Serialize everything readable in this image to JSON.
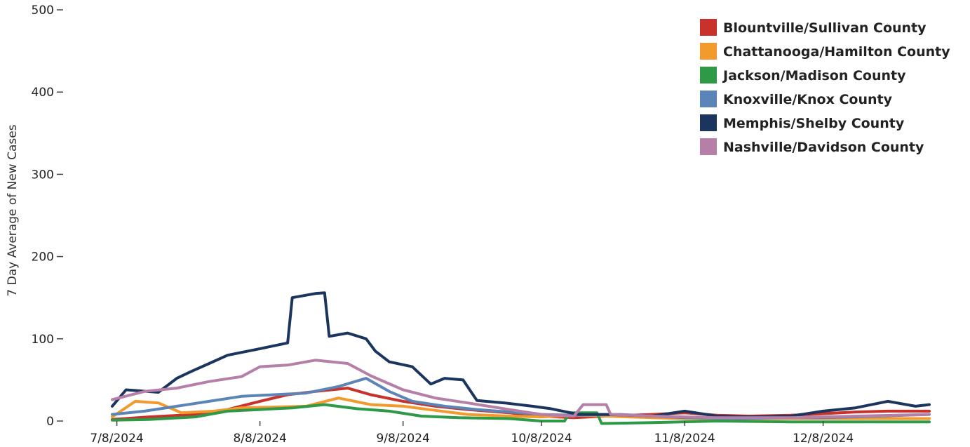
{
  "chart_data": {
    "type": "line",
    "title": "",
    "xlabel": "",
    "ylabel": "7 Day Average of New Cases",
    "ylim": [
      0,
      500
    ],
    "yticks": [
      0,
      100,
      200,
      300,
      400,
      500
    ],
    "xticks": [
      "7/8/2024",
      "8/8/2024",
      "9/8/2024",
      "10/8/2024",
      "11/8/2024",
      "12/8/2024"
    ],
    "grid": false,
    "legend_position": "top-right",
    "series": [
      {
        "name": "Blountville/Sullivan County",
        "color": "#c8322a",
        "points": [
          [
            "7/7/2024",
            2
          ],
          [
            "7/15/2024",
            5
          ],
          [
            "7/25/2024",
            8
          ],
          [
            "8/1/2024",
            14
          ],
          [
            "8/8/2024",
            24
          ],
          [
            "8/14/2024",
            32
          ],
          [
            "8/20/2024",
            36
          ],
          [
            "8/27/2024",
            40
          ],
          [
            "9/1/2024",
            32
          ],
          [
            "9/8/2024",
            24
          ],
          [
            "9/15/2024",
            18
          ],
          [
            "9/22/2024",
            14
          ],
          [
            "10/1/2024",
            10
          ],
          [
            "10/8/2024",
            6
          ],
          [
            "10/15/2024",
            4
          ],
          [
            "10/22/2024",
            6
          ],
          [
            "11/1/2024",
            8
          ],
          [
            "11/8/2024",
            10
          ],
          [
            "11/15/2024",
            7
          ],
          [
            "11/22/2024",
            6
          ],
          [
            "12/1/2024",
            7
          ],
          [
            "12/8/2024",
            9
          ],
          [
            "12/15/2024",
            11
          ],
          [
            "12/22/2024",
            12
          ],
          [
            "12/31/2024",
            12
          ]
        ]
      },
      {
        "name": "Chattanooga/Hamilton County",
        "color": "#f39a2e",
        "points": [
          [
            "7/7/2024",
            5
          ],
          [
            "7/12/2024",
            24
          ],
          [
            "7/17/2024",
            22
          ],
          [
            "7/22/2024",
            10
          ],
          [
            "7/29/2024",
            12
          ],
          [
            "8/4/2024",
            16
          ],
          [
            "8/11/2024",
            17
          ],
          [
            "8/18/2024",
            18
          ],
          [
            "8/25/2024",
            28
          ],
          [
            "9/1/2024",
            20
          ],
          [
            "9/8/2024",
            18
          ],
          [
            "9/15/2024",
            13
          ],
          [
            "9/22/2024",
            8
          ],
          [
            "10/1/2024",
            6
          ],
          [
            "10/8/2024",
            5
          ],
          [
            "10/15/2024",
            7
          ],
          [
            "10/22/2024",
            6
          ],
          [
            "11/1/2024",
            4
          ],
          [
            "11/8/2024",
            3
          ],
          [
            "11/22/2024",
            3
          ],
          [
            "12/8/2024",
            3
          ],
          [
            "12/22/2024",
            3
          ],
          [
            "12/31/2024",
            3
          ]
        ]
      },
      {
        "name": "Jackson/Madison County",
        "color": "#2e9a47",
        "points": [
          [
            "7/7/2024",
            1
          ],
          [
            "7/15/2024",
            2
          ],
          [
            "7/25/2024",
            5
          ],
          [
            "8/1/2024",
            12
          ],
          [
            "8/8/2024",
            14
          ],
          [
            "8/15/2024",
            16
          ],
          [
            "8/22/2024",
            20
          ],
          [
            "8/29/2024",
            15
          ],
          [
            "9/5/2024",
            12
          ],
          [
            "9/12/2024",
            6
          ],
          [
            "9/20/2024",
            4
          ],
          [
            "10/1/2024",
            3
          ],
          [
            "10/8/2024",
            0
          ],
          [
            "10/13/2024",
            0
          ],
          [
            "10/14/2024",
            10
          ],
          [
            "10/20/2024",
            10
          ],
          [
            "10/21/2024",
            -3
          ],
          [
            "11/1/2024",
            -2
          ],
          [
            "11/15/2024",
            0
          ],
          [
            "12/1/2024",
            -1
          ],
          [
            "12/15/2024",
            -1
          ],
          [
            "12/31/2024",
            -1
          ]
        ]
      },
      {
        "name": "Knoxville/Knox County",
        "color": "#5b84b8",
        "points": [
          [
            "7/7/2024",
            8
          ],
          [
            "7/14/2024",
            12
          ],
          [
            "7/21/2024",
            18
          ],
          [
            "7/28/2024",
            24
          ],
          [
            "8/4/2024",
            30
          ],
          [
            "8/11/2024",
            32
          ],
          [
            "8/18/2024",
            34
          ],
          [
            "8/25/2024",
            42
          ],
          [
            "8/31/2024",
            52
          ],
          [
            "9/5/2024",
            36
          ],
          [
            "9/10/2024",
            24
          ],
          [
            "9/17/2024",
            18
          ],
          [
            "9/24/2024",
            14
          ],
          [
            "10/1/2024",
            11
          ],
          [
            "10/8/2024",
            8
          ],
          [
            "10/15/2024",
            7
          ],
          [
            "10/25/2024",
            8
          ],
          [
            "11/1/2024",
            6
          ],
          [
            "11/8/2024",
            4
          ],
          [
            "11/20/2024",
            3
          ],
          [
            "12/1/2024",
            4
          ],
          [
            "12/8/2024",
            4
          ],
          [
            "12/20/2024",
            6
          ],
          [
            "12/31/2024",
            8
          ]
        ]
      },
      {
        "name": "Memphis/Shelby County",
        "color": "#1c355e",
        "points": [
          [
            "7/7/2024",
            18
          ],
          [
            "7/10/2024",
            38
          ],
          [
            "7/17/2024",
            35
          ],
          [
            "7/21/2024",
            52
          ],
          [
            "7/24/2024",
            60
          ],
          [
            "7/28/2024",
            70
          ],
          [
            "8/1/2024",
            80
          ],
          [
            "8/8/2024",
            88
          ],
          [
            "8/14/2024",
            95
          ],
          [
            "8/15/2024",
            150
          ],
          [
            "8/20/2024",
            155
          ],
          [
            "8/22/2024",
            156
          ],
          [
            "8/23/2024",
            103
          ],
          [
            "8/27/2024",
            107
          ],
          [
            "8/31/2024",
            100
          ],
          [
            "9/2/2024",
            85
          ],
          [
            "9/5/2024",
            72
          ],
          [
            "9/10/2024",
            66
          ],
          [
            "9/14/2024",
            45
          ],
          [
            "9/17/2024",
            52
          ],
          [
            "9/21/2024",
            50
          ],
          [
            "9/24/2024",
            25
          ],
          [
            "9/30/2024",
            22
          ],
          [
            "10/6/2024",
            18
          ],
          [
            "10/10/2024",
            15
          ],
          [
            "10/16/2024",
            8
          ],
          [
            "10/22/2024",
            8
          ],
          [
            "11/1/2024",
            6
          ],
          [
            "11/8/2024",
            12
          ],
          [
            "11/15/2024",
            6
          ],
          [
            "11/22/2024",
            5
          ],
          [
            "12/1/2024",
            6
          ],
          [
            "12/8/2024",
            12
          ],
          [
            "12/15/2024",
            16
          ],
          [
            "12/22/2024",
            24
          ],
          [
            "12/28/2024",
            18
          ],
          [
            "12/31/2024",
            20
          ]
        ]
      },
      {
        "name": "Nashville/Davidson County",
        "color": "#b57fa8",
        "points": [
          [
            "7/7/2024",
            26
          ],
          [
            "7/14/2024",
            36
          ],
          [
            "7/21/2024",
            40
          ],
          [
            "7/28/2024",
            48
          ],
          [
            "8/4/2024",
            54
          ],
          [
            "8/8/2024",
            66
          ],
          [
            "8/14/2024",
            68
          ],
          [
            "8/20/2024",
            74
          ],
          [
            "8/27/2024",
            70
          ],
          [
            "9/1/2024",
            55
          ],
          [
            "9/8/2024",
            38
          ],
          [
            "9/15/2024",
            28
          ],
          [
            "9/22/2024",
            22
          ],
          [
            "10/1/2024",
            14
          ],
          [
            "10/8/2024",
            8
          ],
          [
            "10/15/2024",
            6
          ],
          [
            "10/17/2024",
            20
          ],
          [
            "10/22/2024",
            20
          ],
          [
            "10/23/2024",
            8
          ],
          [
            "11/1/2024",
            6
          ],
          [
            "11/15/2024",
            4
          ],
          [
            "12/1/2024",
            4
          ],
          [
            "12/15/2024",
            6
          ],
          [
            "12/31/2024",
            8
          ]
        ]
      }
    ]
  }
}
